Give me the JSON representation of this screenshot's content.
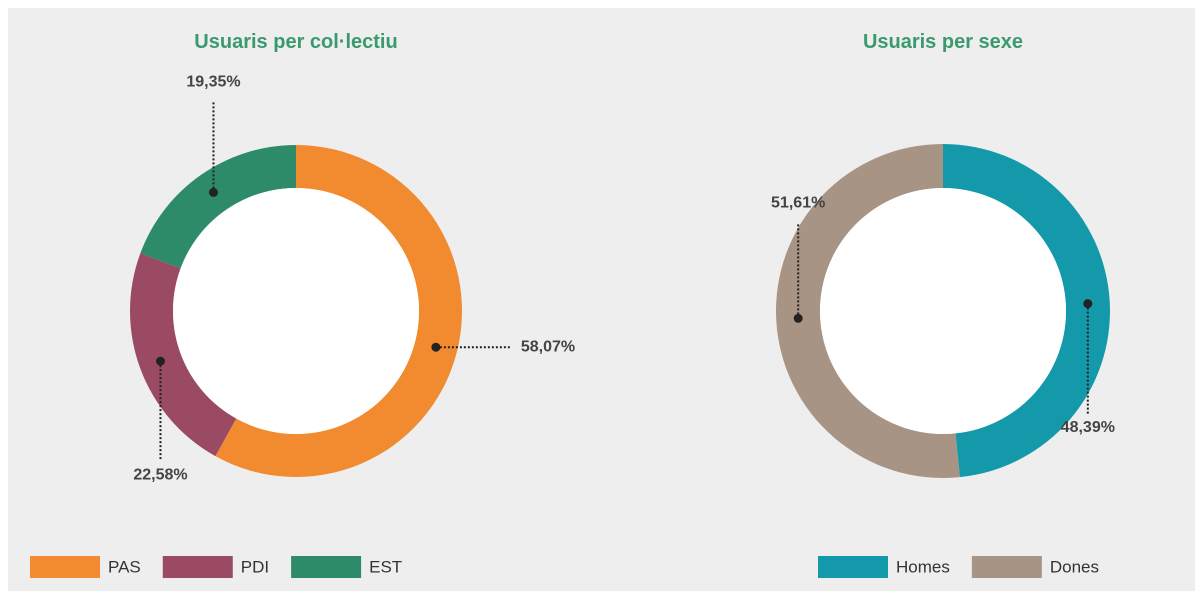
{
  "chart_data": [
    {
      "type": "pie",
      "title": "Usuaris per col·lectiu",
      "categories": [
        "PAS",
        "PDI",
        "EST"
      ],
      "values": [
        58.07,
        22.58,
        19.35
      ],
      "value_labels": [
        "58,07%",
        "22,58%",
        "19,35%"
      ],
      "colors": [
        "#f28a30",
        "#9b4a63",
        "#2e8b6a"
      ]
    },
    {
      "type": "pie",
      "title": "Usuaris per sexe",
      "categories": [
        "Homes",
        "Dones"
      ],
      "values": [
        48.39,
        51.61
      ],
      "value_labels": [
        "48,39%",
        "51,61%"
      ],
      "colors": [
        "#1499ab",
        "#a89484"
      ]
    }
  ]
}
